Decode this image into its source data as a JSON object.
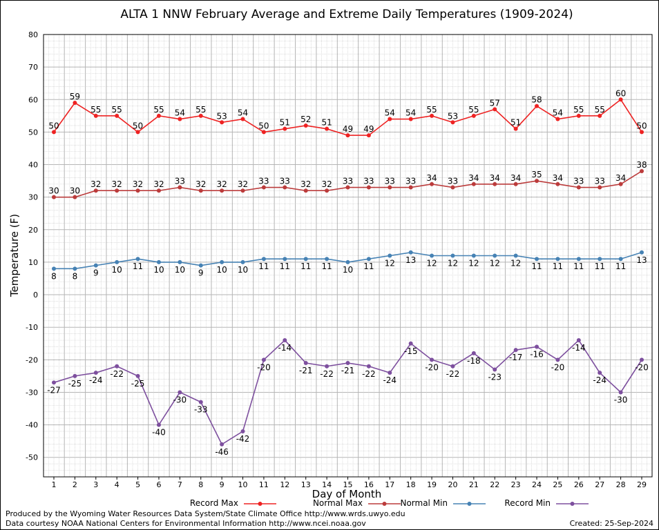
{
  "chart_data": {
    "type": "line",
    "title": "ALTA 1 NNW February Average and Extreme Daily Temperatures (1909-2024)",
    "xlabel": "Day of Month",
    "ylabel": "Temperature (F)",
    "ylim": [
      -56,
      80
    ],
    "yticks": [
      80,
      70,
      60,
      50,
      40,
      30,
      20,
      10,
      0,
      -10,
      -20,
      -30,
      -40,
      -50
    ],
    "x": [
      1,
      2,
      3,
      4,
      5,
      6,
      7,
      8,
      9,
      10,
      11,
      12,
      13,
      14,
      15,
      16,
      17,
      18,
      19,
      20,
      21,
      22,
      23,
      24,
      25,
      26,
      27,
      28,
      29
    ],
    "grid": true,
    "series": [
      {
        "name": "Record Max",
        "color": "#ee2222",
        "values": [
          50,
          59,
          55,
          55,
          50,
          55,
          54,
          55,
          53,
          54,
          50,
          51,
          52,
          51,
          49,
          49,
          54,
          54,
          55,
          53,
          55,
          57,
          51,
          58,
          54,
          55,
          55,
          60,
          50
        ]
      },
      {
        "name": "Normal Max",
        "color": "#bb3b3b",
        "values": [
          30,
          30,
          32,
          32,
          32,
          32,
          33,
          32,
          32,
          32,
          33,
          33,
          32,
          32,
          33,
          33,
          33,
          33,
          34,
          33,
          34,
          34,
          34,
          35,
          34,
          33,
          33,
          34,
          38
        ]
      },
      {
        "name": "Normal Min",
        "color": "#4682b4",
        "values": [
          8,
          8,
          9,
          10,
          11,
          10,
          10,
          9,
          10,
          10,
          11,
          11,
          11,
          11,
          10,
          11,
          12,
          13,
          12,
          12,
          12,
          12,
          12,
          11,
          11,
          11,
          11,
          11,
          13
        ]
      },
      {
        "name": "Record Min",
        "color": "#7d4f9e",
        "values": [
          -27,
          -25,
          -24,
          -22,
          -25,
          -40,
          -30,
          -33,
          -46,
          -42,
          -20,
          -14,
          -21,
          -22,
          -21,
          -22,
          -24,
          -15,
          -20,
          -22,
          -18,
          -23,
          -17,
          -16,
          -20,
          -14,
          -24,
          -30,
          -20
        ]
      }
    ]
  },
  "footer": {
    "produced_by": "Produced by the Wyoming Water Resources Data System/State Climate Office http://www.wrds.uwyo.edu",
    "courtesy": "Data courtesy NOAA National Centers for Environmental Information http://www.ncei.noaa.gov",
    "created": "Created: 25-Sep-2024"
  }
}
